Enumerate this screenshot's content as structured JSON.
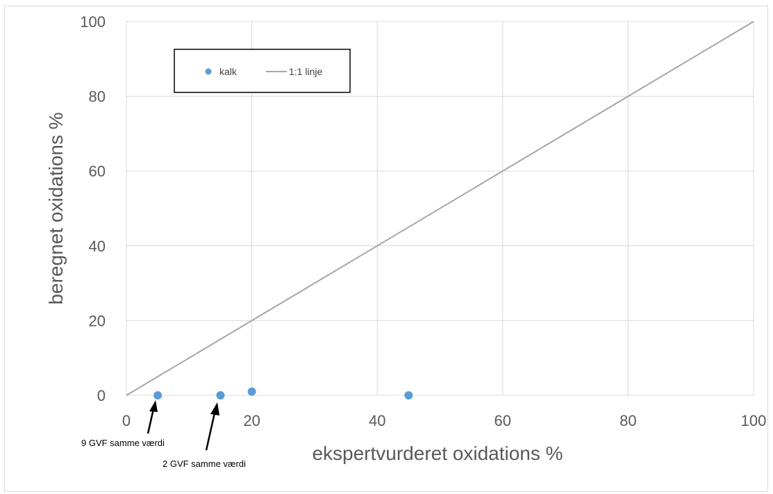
{
  "chart_data": {
    "type": "scatter",
    "title": "",
    "xlabel": "ekspertvurderet oxidations %",
    "ylabel": "beregnet oxidations %",
    "xlim": [
      0,
      100
    ],
    "ylim": [
      0,
      100
    ],
    "xticks": [
      0,
      20,
      40,
      60,
      80,
      100
    ],
    "yticks": [
      0,
      20,
      40,
      60,
      80,
      100
    ],
    "grid": true,
    "legend_position": "top-left",
    "series": [
      {
        "name": "kalk",
        "kind": "scatter",
        "color": "#5b9bd5",
        "x": [
          5,
          15,
          20,
          45
        ],
        "y": [
          0,
          0,
          1,
          0
        ]
      },
      {
        "name": "1:1 linje",
        "kind": "line",
        "color": "#a6a6a6",
        "x": [
          0,
          100
        ],
        "y": [
          0,
          100
        ]
      }
    ],
    "annotations": [
      {
        "text": "9 GVF samme værdi",
        "x": 5,
        "y": 0
      },
      {
        "text": "2 GVF samme værdi",
        "x": 15,
        "y": 0
      }
    ]
  }
}
